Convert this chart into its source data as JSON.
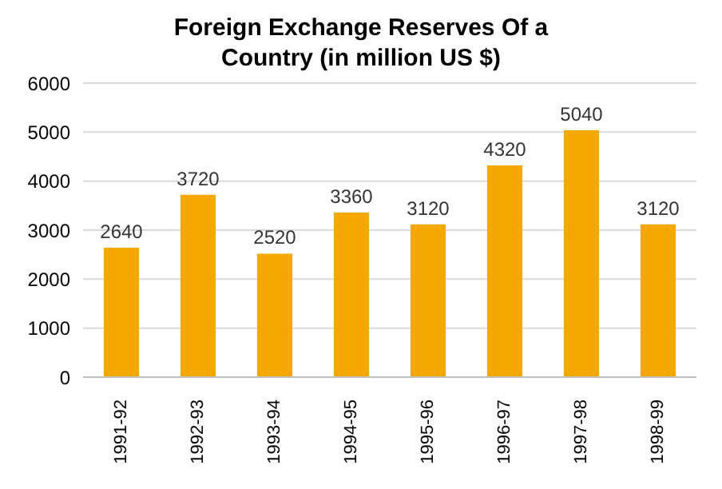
{
  "chart_data": {
    "type": "bar",
    "title": "Foreign Exchange Reserves Of a Country (in million US $)",
    "categories": [
      "1991-92",
      "1992-93",
      "1993-94",
      "1994-95",
      "1995-96",
      "1996-97",
      "1997-98",
      "1998-99"
    ],
    "values": [
      2640,
      3720,
      2520,
      3360,
      3120,
      4320,
      5040,
      3120
    ],
    "color": "#f5a800",
    "ylim": [
      0,
      6000
    ],
    "yticks": [
      0,
      1000,
      2000,
      3000,
      4000,
      5000,
      6000
    ],
    "grid": "y",
    "data_labels": true
  }
}
